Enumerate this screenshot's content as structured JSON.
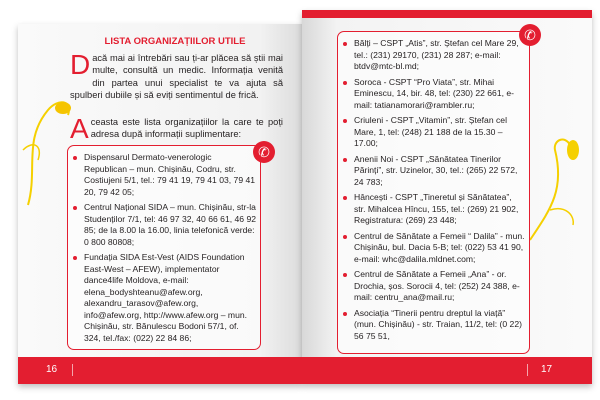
{
  "left_page": {
    "title": "LISTA ORGANIZAȚIILOR UTILE",
    "intro_initial": "D",
    "intro_text": "acă mai ai întrebări sau ți-ar plăcea să știi mai multe, consultă un medic. Informația venită din partea unui specialist te va ajuta să spulberi dubiile și să eviți sentimentul de frică.",
    "list_intro_initial": "A",
    "list_intro_text": "ceasta este lista organizațiilor la care te poți adresa după informații suplimentare:",
    "items": [
      "Dispensarul Dermato-venerologic Republican – mun. Chișinău, Codru, str. Costiujeni 5/1, tel.: 79 41 19, 79 41 03, 79 41 20, 79 42 05;",
      "Centrul Național SIDA – mun. Chișinău, str-la Studenților 7/1, tel: 46 97 32, 40 66 61, 46 92 85; de la 8.00 la 16.00, linia telefonică verde: 0 800 80808;",
      "Fundația SIDA Est-Vest (AIDS Foundation East-West – AFEW), implementator dance4life Moldova, e-mail: elena_bodyshteanu@afew.org, alexandru_tarasov@afew.org, info@afew.org, http://www.afew.org – mun. Chișinău, str. Bănulescu Bodoni 57/1, of. 324, tel./fax: (022) 22 84 86;"
    ],
    "page_number": "16"
  },
  "right_page": {
    "items": [
      "Bălți – CSPT „Atis”, str. Ștefan cel Mare 29, tel.: (231) 29170, (231) 28 287; e-mail: btdv@mtc-bl.md;",
      "Soroca - CSPT “Pro Viata”, str. Mihai Eminescu, 14, bir. 48, tel: (230) 22 661, e-mail: tatianamorari@rambler.ru;",
      "Criuleni - CSPT „Vitamin”, str. Ștefan cel Mare, 1, tel: (248) 21 188 de la 15.30 – 17.00;",
      "Anenii Noi - CSPT „Sănătatea Tinerilor Părinți”, str. Uzinelor, 30, tel.: (265) 22 572, 24 783;",
      "Hâncești - CSPT „Tineretul și Sănătatea”, str. Mihalcea Hîncu, 155, tel.: (269) 21 902, Registratura: (269) 23 448;",
      "Centrul de Sănătate a Femeii “ Dalila” - mun. Chișinău, bul. Dacia 5-B; tel: (022) 53 41 90, e-mail: whc@dalila.mldnet.com;",
      "Centrul de Sănătate a Femeii „Ana” - or. Drochia, șos. Sorocii 4, tel: (252) 24 388, e-mail: centru_ana@mail.ru;",
      "Asociația “Tinerii pentru dreptul la viață” (mun. Chișinău) - str. Traian, 11/2, tel: (0 22) 56 75 51,"
    ],
    "page_number": "17"
  },
  "icons": {
    "phone": "phone-icon",
    "bullet": "red-dot-bullet"
  },
  "colors": {
    "accent": "#e31e30",
    "decoration": "#f5d000"
  }
}
